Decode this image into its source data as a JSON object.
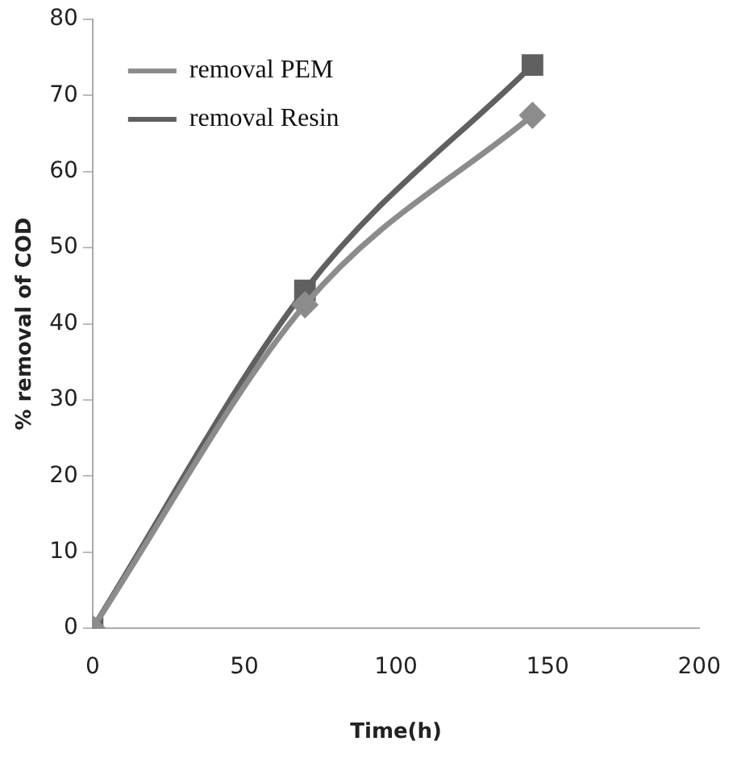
{
  "chart_data": {
    "type": "line",
    "xlabel": "Time(h)",
    "ylabel": "% removal of COD",
    "x": [
      0,
      70,
      145
    ],
    "series": [
      {
        "name": "removal PEM",
        "color": "#8c8c8c",
        "marker": "diamond",
        "values": [
          0,
          42.5,
          67.4
        ]
      },
      {
        "name": "removal Resin",
        "color": "#606060",
        "marker": "square",
        "values": [
          0,
          44.4,
          74
        ]
      }
    ],
    "xlim": [
      0,
      200
    ],
    "xticks": [
      0,
      50,
      100,
      150,
      200
    ],
    "ylim": [
      0,
      80
    ],
    "yticks": [
      0,
      10,
      20,
      30,
      40,
      50,
      60,
      70,
      80
    ],
    "grid": false,
    "legend": "top left"
  }
}
